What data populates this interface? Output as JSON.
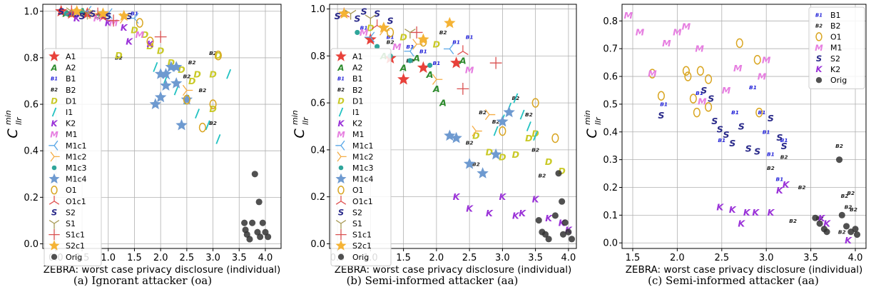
{
  "colors": {
    "A1": "#e8413a",
    "A2": "#2e8b2e",
    "B1": "#2424d8",
    "B2": "#222222",
    "D1": "#c9c927",
    "I1": "#22c2c2",
    "K2": "#9a32d8",
    "M1": "#e67ee0",
    "M1c1": "#5aa8e8",
    "M1c2": "#f5ad45",
    "M1c3": "#2fa59a",
    "M1c4": "#6e9ad0",
    "O1": "#d9a520",
    "O1c1": "#e05252",
    "S2": "#2a2a8a",
    "S1": "#a89a55",
    "S1c1": "#d95050",
    "S2c1": "#f5b335",
    "Orig": "#333333"
  },
  "chart_data": [
    {
      "type": "scatter",
      "caption": "(a) Ignorant attacker (oa)",
      "xlabel": "ZEBRA: worst case privacy disclosure (individual)",
      "ylabel_main": "C",
      "ylabel_sup": "min",
      "ylabel_sub": "llr",
      "xlim": [
        -0.25,
        4.3
      ],
      "ylim": [
        -0.02,
        1.03
      ],
      "xticks": [
        "0.0",
        "0.5",
        "1.0",
        "1.5",
        "2.0",
        "2.5",
        "3.0",
        "3.5",
        "4.0"
      ],
      "xtick_values": [
        0,
        0.5,
        1,
        1.5,
        2,
        2.5,
        3,
        3.5,
        4
      ],
      "yticks": [
        "0.0",
        "0.2",
        "0.4",
        "0.6",
        "0.8",
        "1.0"
      ],
      "ytick_values": [
        0,
        0.2,
        0.4,
        0.6,
        0.8,
        1.0
      ],
      "grid": true,
      "legend_position": "left",
      "legend": [
        "A1",
        "A2",
        "B1",
        "B2",
        "D1",
        "I1",
        "K2",
        "M1",
        "M1c1",
        "M1c2",
        "M1c3",
        "M1c4",
        "O1",
        "O1c1",
        "S2",
        "S1",
        "S1c1",
        "S2c1",
        "Orig"
      ],
      "series": [
        {
          "name": "A1",
          "x": [
            0.1,
            0.3,
            0.6,
            0.9
          ],
          "y": [
            1.0,
            0.99,
            0.99,
            0.98
          ]
        },
        {
          "name": "A2",
          "x": [
            0.2,
            0.5,
            0.8
          ],
          "y": [
            0.99,
            1.0,
            0.98
          ]
        },
        {
          "name": "B1",
          "x": [
            0.3,
            0.9,
            1.5
          ],
          "y": [
            0.99,
            0.98,
            0.99
          ]
        },
        {
          "name": "B2",
          "x": [
            0.5,
            1.2,
            2.6,
            2.5,
            3.0,
            2.8,
            3.0
          ],
          "y": [
            0.99,
            0.8,
            0.78,
            0.72,
            0.82,
            0.66,
            0.52
          ]
        },
        {
          "name": "D1",
          "x": [
            1.2,
            1.5,
            1.7,
            1.8,
            2.0,
            2.2,
            2.4,
            2.6,
            2.7,
            3.0,
            3.0,
            3.1
          ],
          "y": [
            0.81,
            0.92,
            0.9,
            0.85,
            0.83,
            0.78,
            0.75,
            0.7,
            0.73,
            0.58,
            0.73,
            0.81
          ]
        },
        {
          "name": "I1",
          "x": [
            1.9,
            2.1,
            2.3,
            2.5,
            2.7,
            2.9,
            3.1,
            3.3
          ],
          "y": [
            0.76,
            0.71,
            0.66,
            0.62,
            0.56,
            0.51,
            0.45,
            0.73
          ]
        },
        {
          "name": "K2",
          "x": [
            0.4,
            1.0,
            1.3,
            1.4,
            1.8
          ],
          "y": [
            0.97,
            0.95,
            0.93,
            0.87,
            0.86
          ]
        },
        {
          "name": "M1",
          "x": [
            0.8,
            1.1,
            1.6
          ],
          "y": [
            0.97,
            0.95,
            0.9
          ]
        },
        {
          "name": "M1c1",
          "x": [
            0.6,
            1.0,
            1.5,
            2.1
          ],
          "y": [
            1.0,
            0.99,
            0.97,
            0.73
          ]
        },
        {
          "name": "M1c2",
          "x": [
            0.7,
            1.3,
            2.5
          ],
          "y": [
            0.99,
            0.97,
            0.66
          ]
        },
        {
          "name": "M1c3",
          "x": [
            0.2,
            0.5,
            0.9
          ],
          "y": [
            0.99,
            1.0,
            0.99
          ]
        },
        {
          "name": "M1c4",
          "x": [
            1.9,
            2.0,
            2.1,
            2.2,
            2.3,
            2.4,
            2.5,
            2.0,
            2.1,
            2.3
          ],
          "y": [
            0.6,
            0.63,
            0.73,
            0.76,
            0.69,
            0.51,
            0.62,
            0.73,
            0.68,
            0.76
          ]
        },
        {
          "name": "O1",
          "x": [
            1.6,
            1.8,
            2.5,
            2.8,
            3.0,
            3.1
          ],
          "y": [
            0.95,
            0.87,
            0.62,
            0.5,
            0.6,
            0.81
          ]
        },
        {
          "name": "O1c1",
          "x": [
            0.3,
            0.8
          ],
          "y": [
            1.0,
            0.99
          ]
        },
        {
          "name": "S2",
          "x": [
            0.1,
            0.4,
            0.5,
            0.7,
            1.0,
            1.4
          ],
          "y": [
            1.0,
            0.99,
            0.98,
            0.99,
            0.98,
            0.98
          ]
        },
        {
          "name": "S1",
          "x": [
            0.3,
            0.6
          ],
          "y": [
            1.0,
            0.99
          ]
        },
        {
          "name": "S1c1",
          "x": [
            1.1,
            2.0
          ],
          "y": [
            0.96,
            0.89
          ]
        },
        {
          "name": "S2c1",
          "x": [
            0.4,
            0.9,
            1.3
          ],
          "y": [
            1.0,
            0.99,
            0.98
          ]
        },
        {
          "name": "Orig",
          "x": [
            3.6,
            3.62,
            3.65,
            3.7,
            3.75,
            3.8,
            3.85,
            3.88,
            3.9,
            3.95,
            4.0,
            4.05
          ],
          "y": [
            0.09,
            0.06,
            0.04,
            0.02,
            0.09,
            0.3,
            0.05,
            0.18,
            0.03,
            0.09,
            0.05,
            0.03
          ]
        }
      ]
    },
    {
      "type": "scatter",
      "caption": "(b) Semi-informed attacker (aa)",
      "xlabel": "ZEBRA: worst case privacy disclosure (individual)",
      "ylabel_main": "C",
      "ylabel_sup": "min",
      "ylabel_sub": "llr",
      "xlim": [
        0.38,
        4.12
      ],
      "ylim": [
        -0.02,
        1.02
      ],
      "xticks": [
        "0.5",
        "1.0",
        "1.5",
        "2.0",
        "2.5",
        "3.0",
        "3.5",
        "4.0"
      ],
      "xtick_values": [
        0.5,
        1,
        1.5,
        2,
        2.5,
        3,
        3.5,
        4
      ],
      "yticks": [
        "0.0",
        "0.2",
        "0.4",
        "0.6",
        "0.8",
        "1.0"
      ],
      "ytick_values": [
        0,
        0.2,
        0.4,
        0.6,
        0.8,
        1.0
      ],
      "grid": true,
      "legend_position": "left",
      "legend": [
        "A1",
        "A2",
        "B1",
        "B2",
        "D1",
        "I1",
        "K2",
        "M1",
        "M1c1",
        "M1c2",
        "M1c3",
        "M1c4",
        "O1",
        "O1c1",
        "S2",
        "S1",
        "S1c1",
        "S2c1",
        "Orig"
      ],
      "series": [
        {
          "name": "A1",
          "x": [
            1.0,
            1.3,
            1.5,
            1.8,
            2.3
          ],
          "y": [
            0.87,
            0.79,
            0.7,
            0.75,
            0.77
          ]
        },
        {
          "name": "A2",
          "x": [
            1.2,
            1.5,
            1.7,
            1.9,
            2.0,
            2.1,
            2.4
          ],
          "y": [
            0.8,
            0.75,
            0.79,
            0.72,
            0.66,
            0.6,
            0.78
          ]
        },
        {
          "name": "B1",
          "x": [
            0.9,
            1.3,
            1.6,
            1.8,
            2.0,
            2.3,
            2.5
          ],
          "y": [
            0.92,
            0.88,
            0.84,
            0.82,
            0.77,
            0.86,
            0.88
          ]
        },
        {
          "name": "B2",
          "x": [
            1.3,
            1.6,
            2.1,
            2.5,
            2.6,
            2.7,
            2.9,
            3.2,
            3.4,
            3.5,
            3.6
          ],
          "y": [
            0.86,
            0.78,
            0.9,
            0.43,
            0.34,
            0.56,
            0.52,
            0.62,
            0.55,
            0.4,
            0.29
          ]
        },
        {
          "name": "D1",
          "x": [
            1.0,
            1.5,
            2.0,
            2.6,
            2.8,
            3.0,
            3.2,
            3.4,
            3.5,
            3.7,
            3.9
          ],
          "y": [
            0.92,
            0.88,
            0.85,
            0.46,
            0.39,
            0.37,
            0.38,
            0.45,
            0.47,
            0.35,
            0.31
          ]
        },
        {
          "name": "I1",
          "x": [
            2.9,
            3.0,
            3.1,
            3.2,
            3.3,
            3.4,
            3.5
          ],
          "y": [
            0.48,
            0.53,
            0.58,
            0.62,
            0.55,
            0.5,
            0.46
          ]
        },
        {
          "name": "K2",
          "x": [
            2.3,
            2.5,
            2.8,
            3.0,
            3.2,
            3.3,
            3.5,
            3.7,
            3.9,
            4.0
          ],
          "y": [
            0.2,
            0.15,
            0.13,
            0.2,
            0.12,
            0.13,
            0.19,
            0.11,
            0.09,
            0.06
          ]
        },
        {
          "name": "M1",
          "x": [
            0.9,
            1.4,
            2.5
          ],
          "y": [
            0.9,
            0.84,
            0.74
          ]
        },
        {
          "name": "M1c1",
          "x": [
            1.0,
            1.6,
            2.2
          ],
          "y": [
            0.88,
            0.82,
            0.83
          ]
        },
        {
          "name": "M1c2",
          "x": [
            1.2,
            1.7,
            2.0,
            2.6,
            2.8
          ],
          "y": [
            0.91,
            0.85,
            0.7,
            0.48,
            0.55
          ]
        },
        {
          "name": "M1c3",
          "x": [
            0.8,
            1.1,
            1.3,
            1.6,
            1.9
          ],
          "y": [
            0.9,
            0.84,
            0.8,
            0.78,
            0.76
          ]
        },
        {
          "name": "M1c4",
          "x": [
            2.2,
            2.3,
            2.5,
            2.7,
            2.9,
            3.0,
            3.1
          ],
          "y": [
            0.46,
            0.45,
            0.34,
            0.3,
            0.38,
            0.52,
            0.56
          ]
        },
        {
          "name": "O1",
          "x": [
            1.3,
            1.8,
            3.0,
            3.5,
            3.8
          ],
          "y": [
            0.9,
            0.86,
            0.48,
            0.6,
            0.45
          ]
        },
        {
          "name": "O1c1",
          "x": [
            0.6,
            1.1,
            2.4
          ],
          "y": [
            0.98,
            0.93,
            0.82
          ]
        },
        {
          "name": "S2",
          "x": [
            0.5,
            0.6,
            0.8,
            0.9,
            1.1,
            1.3
          ],
          "y": [
            0.97,
            0.98,
            0.96,
            0.99,
            0.98,
            0.95
          ]
        },
        {
          "name": "S1",
          "x": [
            0.7,
            1.0,
            1.6
          ],
          "y": [
            0.98,
            0.96,
            0.9
          ]
        },
        {
          "name": "S1c1",
          "x": [
            1.7,
            2.4,
            2.9
          ],
          "y": [
            0.9,
            0.66,
            0.77
          ]
        },
        {
          "name": "S2c1",
          "x": [
            0.6,
            1.2,
            1.8,
            2.2
          ],
          "y": [
            0.98,
            0.92,
            0.87,
            0.94
          ]
        },
        {
          "name": "Orig",
          "x": [
            3.55,
            3.6,
            3.65,
            3.7,
            3.8,
            3.85,
            3.9,
            3.92,
            3.95,
            4.0,
            4.05
          ],
          "y": [
            0.1,
            0.05,
            0.04,
            0.02,
            0.12,
            0.3,
            0.18,
            0.04,
            0.09,
            0.05,
            0.02
          ]
        }
      ]
    },
    {
      "type": "scatter",
      "caption": "(c) Semi-informed attacker (aa)",
      "xlabel": "ZEBRA: worst case privacy disclosure (individual)",
      "ylabel_main": "C",
      "ylabel_sup": "min",
      "ylabel_sub": "llr",
      "xlim": [
        1.38,
        4.12
      ],
      "ylim": [
        -0.02,
        0.86
      ],
      "xticks": [
        "1.5",
        "2.0",
        "2.5",
        "3.0",
        "3.5",
        "4.0"
      ],
      "xtick_values": [
        1.5,
        2,
        2.5,
        3,
        3.5,
        4
      ],
      "yticks": [
        "0.0",
        "0.1",
        "0.2",
        "0.3",
        "0.4",
        "0.5",
        "0.6",
        "0.7",
        "0.8"
      ],
      "ytick_values": [
        0,
        0.1,
        0.2,
        0.3,
        0.4,
        0.5,
        0.6,
        0.7,
        0.8
      ],
      "grid": true,
      "legend_position": "upper right",
      "legend": [
        "B1",
        "B2",
        "O1",
        "M1",
        "S2",
        "K2",
        "Orig"
      ],
      "series": [
        {
          "name": "B1",
          "x": [
            1.85,
            2.25,
            2.5,
            2.65,
            2.85,
            2.95,
            3.0,
            3.05,
            3.15,
            3.2
          ],
          "y": [
            0.5,
            0.54,
            0.37,
            0.47,
            0.56,
            0.47,
            0.4,
            0.32,
            0.23,
            0.37
          ]
        },
        {
          "name": "B2",
          "x": [
            3.2,
            3.05,
            3.3,
            3.4,
            3.6,
            3.82,
            3.85,
            3.88,
            3.92,
            3.95,
            3.98
          ],
          "y": [
            0.31,
            0.27,
            0.08,
            0.2,
            0.09,
            0.35,
            0.04,
            0.17,
            0.13,
            0.18,
            0.12
          ]
        },
        {
          "name": "O1",
          "x": [
            1.72,
            1.82,
            2.1,
            2.12,
            2.18,
            2.22,
            2.26,
            2.35,
            2.35,
            2.7,
            2.9,
            2.92
          ],
          "y": [
            0.61,
            0.53,
            0.62,
            0.6,
            0.52,
            0.47,
            0.62,
            0.49,
            0.59,
            0.72,
            0.66,
            0.47
          ]
        },
        {
          "name": "M1",
          "x": [
            1.45,
            1.58,
            1.72,
            1.88,
            2.0,
            2.1,
            2.25,
            2.28,
            2.55,
            2.68,
            2.95,
            3.0
          ],
          "y": [
            0.82,
            0.76,
            0.61,
            0.72,
            0.76,
            0.78,
            0.7,
            0.51,
            0.55,
            0.63,
            0.6,
            0.66
          ]
        },
        {
          "name": "S2",
          "x": [
            1.82,
            2.3,
            2.38,
            2.42,
            2.48,
            2.55,
            2.62,
            2.72,
            2.8,
            2.9,
            3.05,
            3.15,
            3.2
          ],
          "y": [
            0.46,
            0.55,
            0.52,
            0.44,
            0.41,
            0.39,
            0.36,
            0.42,
            0.34,
            0.33,
            0.45,
            0.38,
            0.35
          ]
        },
        {
          "name": "K2",
          "x": [
            2.48,
            2.62,
            2.72,
            2.78,
            2.88,
            3.05,
            3.15,
            3.22,
            3.62,
            3.68,
            3.92
          ],
          "y": [
            0.13,
            0.12,
            0.07,
            0.11,
            0.11,
            0.11,
            0.19,
            0.21,
            0.09,
            0.07,
            0.01
          ]
        },
        {
          "name": "Orig",
          "x": [
            3.55,
            3.6,
            3.65,
            3.68,
            3.82,
            3.85,
            3.9,
            3.95,
            4.0,
            4.02
          ],
          "y": [
            0.09,
            0.07,
            0.05,
            0.04,
            0.3,
            0.1,
            0.06,
            0.04,
            0.05,
            0.03
          ]
        }
      ]
    }
  ]
}
